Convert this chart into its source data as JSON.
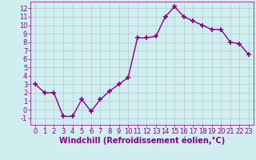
{
  "x": [
    0,
    1,
    2,
    3,
    4,
    5,
    6,
    7,
    8,
    9,
    10,
    11,
    12,
    13,
    14,
    15,
    16,
    17,
    18,
    19,
    20,
    21,
    22,
    23
  ],
  "y": [
    3,
    2,
    2,
    -0.8,
    -0.8,
    1.2,
    -0.2,
    1.2,
    2.2,
    3.0,
    3.8,
    8.5,
    8.5,
    8.7,
    11.0,
    12.2,
    11.0,
    10.5,
    10.0,
    9.5,
    9.5,
    8.0,
    7.8,
    6.5
  ],
  "line_color": "#880088",
  "marker": "+",
  "markersize": 4,
  "markeredgewidth": 1.2,
  "linewidth": 1.0,
  "xlabel": "Windchill (Refroidissement éolien,°C)",
  "xlim": [
    -0.5,
    23.5
  ],
  "ylim": [
    -1.8,
    12.8
  ],
  "yticks": [
    -1,
    0,
    1,
    2,
    3,
    4,
    5,
    6,
    7,
    8,
    9,
    10,
    11,
    12
  ],
  "xticks": [
    0,
    1,
    2,
    3,
    4,
    5,
    6,
    7,
    8,
    9,
    10,
    11,
    12,
    13,
    14,
    15,
    16,
    17,
    18,
    19,
    20,
    21,
    22,
    23
  ],
  "bg_color": "#d0eef0",
  "grid_color": "#b0c8d0",
  "tick_color": "#880088",
  "label_color": "#880088",
  "tick_fontsize": 6.0,
  "xlabel_fontsize": 7.0
}
